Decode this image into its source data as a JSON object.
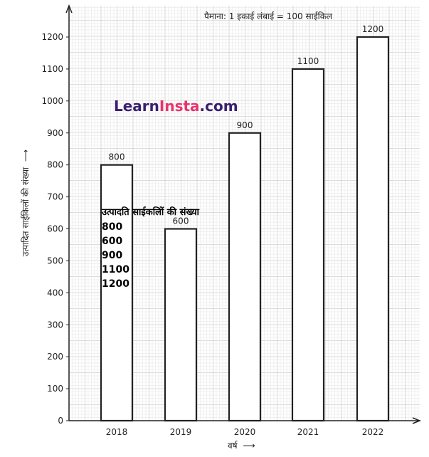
{
  "chart_data": {
    "type": "bar",
    "categories": [
      "2018",
      "2019",
      "2020",
      "2021",
      "2022"
    ],
    "values": [
      800,
      600,
      900,
      1100,
      1200
    ],
    "title": "",
    "xlabel": "वर्ष",
    "ylabel": "उत्पादित साईकिलों की संख्या",
    "ylim": [
      0,
      1200
    ],
    "yticks": [
      0,
      100,
      200,
      300,
      400,
      500,
      600,
      700,
      800,
      900,
      1000,
      1100,
      1200
    ],
    "grid": true,
    "legend": "none",
    "scale_note": "पैमाना: 1 इकाई लंबाई = 100 साईकिल",
    "bar_fill": "#ffffff",
    "bar_stroke": "#222222"
  },
  "watermark": {
    "learn": "Learn",
    "insta": "Insta",
    "dotcom": ".com",
    "learn_color": "#3a1f6e",
    "insta_color": "#e8336d"
  },
  "overlay": {
    "title": "उत्पादति साईकलिों की संख्या",
    "values": [
      "800",
      "600",
      "900",
      "1100",
      "1200"
    ]
  }
}
